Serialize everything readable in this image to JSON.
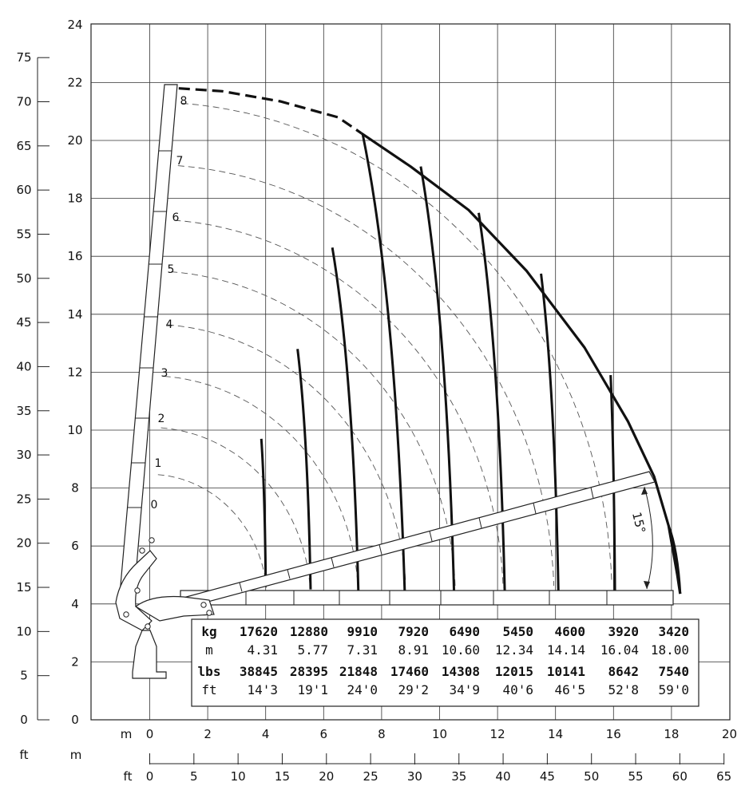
{
  "chart_data": {
    "type": "line",
    "x_axis_m": {
      "label": "m",
      "ticks": [
        0,
        2,
        4,
        6,
        8,
        10,
        12,
        14,
        16,
        18,
        20
      ],
      "range": [
        0,
        20
      ]
    },
    "x_axis_ft": {
      "unit_label": "m",
      "label": "ft",
      "ticks": [
        0,
        5,
        10,
        15,
        20,
        25,
        30,
        35,
        40,
        45,
        50,
        55,
        60,
        65
      ]
    },
    "y_axis_m": {
      "ticks": [
        0,
        2,
        4,
        6,
        8,
        10,
        12,
        14,
        16,
        18,
        20,
        22,
        24
      ],
      "range": [
        0,
        24
      ]
    },
    "y_axis_ft": {
      "label": "ft",
      "ticks": [
        0,
        5,
        10,
        15,
        20,
        25,
        30,
        35,
        40,
        45,
        50,
        55,
        60,
        65,
        70,
        75
      ]
    },
    "grid": true,
    "boom_angle_label": "15°",
    "boom_sections": [
      "0",
      "1",
      "2",
      "3",
      "4",
      "5",
      "6",
      "7",
      "8"
    ],
    "load_table": {
      "rows": [
        {
          "unit": "kg",
          "values": [
            "17620",
            "12880",
            "9910",
            "7920",
            "6490",
            "5450",
            "4600",
            "3920",
            "3420"
          ]
        },
        {
          "unit": "m",
          "values": [
            "4.31",
            "5.77",
            "7.31",
            "8.91",
            "10.60",
            "12.34",
            "14.14",
            "16.04",
            "18.00"
          ]
        },
        {
          "unit": "lbs",
          "values": [
            "38845",
            "28395",
            "21848",
            "17460",
            "14308",
            "12015",
            "10141",
            "8642",
            "7540"
          ]
        },
        {
          "unit": "ft",
          "values": [
            "14'3",
            "19'1",
            "24'0",
            "29'2",
            "34'9",
            "40'6",
            "46'5",
            "52'8",
            "59'0"
          ]
        }
      ]
    },
    "envelope": {
      "dashed": [
        [
          1.0,
          21.8
        ],
        [
          2.5,
          21.7
        ],
        [
          4.5,
          21.35
        ],
        [
          6.5,
          20.8
        ],
        [
          7.3,
          20.25
        ]
      ],
      "solid": [
        [
          7.3,
          20.25
        ],
        [
          9.0,
          19.1
        ],
        [
          11.0,
          17.6
        ],
        [
          13.0,
          15.5
        ],
        [
          15.0,
          12.85
        ],
        [
          16.5,
          10.3
        ],
        [
          17.4,
          8.4
        ],
        [
          17.9,
          6.7
        ],
        [
          18.2,
          5.0
        ],
        [
          18.3,
          4.35
        ]
      ]
    },
    "load_curves": [
      {
        "top": [
          3.85,
          9.7
        ],
        "bottom": [
          4.0,
          4.85
        ]
      },
      {
        "top": [
          5.1,
          12.8
        ],
        "bottom": [
          5.55,
          4.5
        ]
      },
      {
        "top": [
          6.3,
          16.3
        ],
        "bottom": [
          7.2,
          4.35
        ]
      },
      {
        "top": [
          7.35,
          20.2
        ],
        "bottom": [
          8.8,
          4.35
        ]
      },
      {
        "top": [
          9.35,
          19.1
        ],
        "bottom": [
          10.5,
          4.35
        ]
      },
      {
        "top": [
          11.35,
          17.5
        ],
        "bottom": [
          12.25,
          4.35
        ]
      },
      {
        "top": [
          13.5,
          15.4
        ],
        "bottom": [
          14.1,
          4.35
        ]
      },
      {
        "top": [
          15.9,
          11.9
        ],
        "bottom": [
          16.05,
          4.35
        ]
      },
      {
        "top": [
          17.9,
          6.7
        ],
        "bottom": [
          18.3,
          4.35
        ]
      }
    ],
    "section_arcs": [
      {
        "label": "0",
        "r": 4.05
      },
      {
        "label": "1",
        "r": 5.55
      },
      {
        "label": "2",
        "r": 7.2
      },
      {
        "label": "3",
        "r": 8.85
      },
      {
        "label": "4",
        "r": 10.55
      },
      {
        "label": "5",
        "r": 12.2
      },
      {
        "label": "6",
        "r": 13.95
      },
      {
        "label": "7",
        "r": 15.95
      }
    ]
  }
}
